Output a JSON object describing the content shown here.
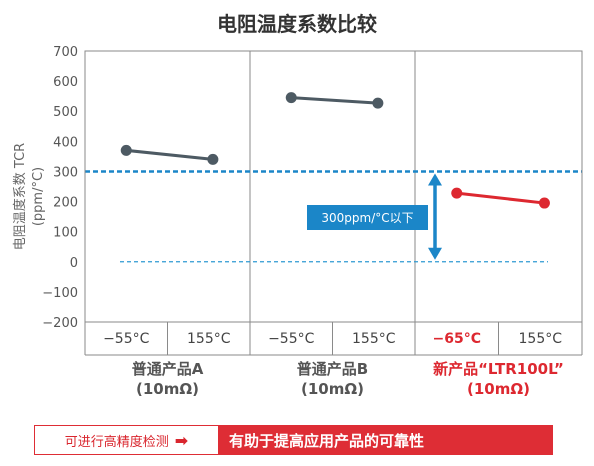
{
  "chart_data": {
    "type": "line",
    "title": "电阻温度系数比较",
    "ylabel": "电阻温度系数 TCR",
    "yunit": "(ppm/°C)",
    "ylim": [
      -200,
      700
    ],
    "yticks": [
      -200,
      -100,
      0,
      100,
      200,
      300,
      400,
      500,
      600,
      700
    ],
    "ytick_labels": [
      "−200",
      "−100",
      "0",
      "100",
      "200",
      "300",
      "400",
      "500",
      "600",
      "700"
    ],
    "grid": false,
    "reference_lines": [
      300,
      0
    ],
    "groups": [
      {
        "label": "普通产品A",
        "sublabel": "(10mΩ)",
        "x_labels": [
          "−55°C",
          "155°C"
        ],
        "values": [
          370,
          340
        ],
        "color": "#4d5a63",
        "label_color": "#555555",
        "first_tick_color": "#444444"
      },
      {
        "label": "普通产品B",
        "sublabel": "(10mΩ)",
        "x_labels": [
          "−55°C",
          "155°C"
        ],
        "values": [
          545,
          527
        ],
        "color": "#4d5a63",
        "label_color": "#555555",
        "first_tick_color": "#444444"
      },
      {
        "label": "新产品“LTR100L”",
        "sublabel": "(10mΩ)",
        "x_labels": [
          "−65°C",
          "155°C"
        ],
        "values": [
          228,
          195
        ],
        "color": "#dd2830",
        "label_color": "#dd2830",
        "first_tick_color": "#dd2830"
      }
    ],
    "annotation": {
      "text": "300ppm/°C以下",
      "from": 300,
      "to": 0,
      "color": "#1b86c8"
    }
  },
  "banner": {
    "left_text": "可进行高精度检测",
    "arrow": "➡",
    "right_text": "有助于提高应用产品的可靠性"
  }
}
